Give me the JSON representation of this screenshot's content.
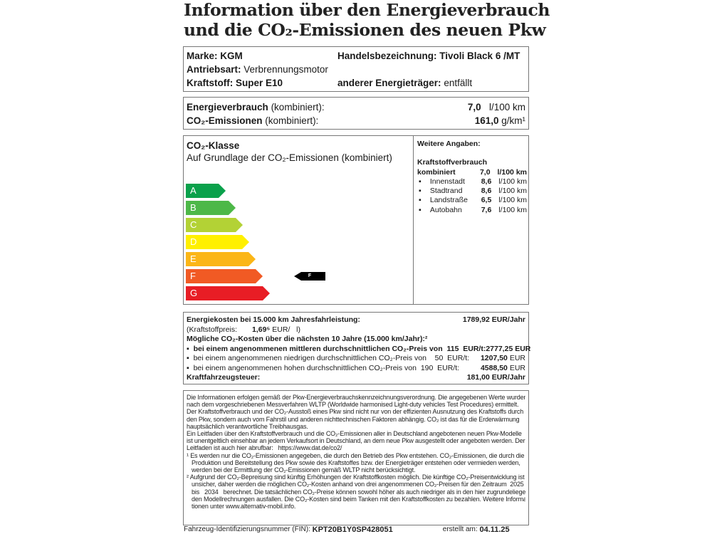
{
  "title": {
    "line1": "Information über den Energieverbrauch",
    "line2": "und die CO₂-Emissionen des neuen Pkw"
  },
  "vehicle": {
    "marke_label": "Marke:",
    "marke": "KGM",
    "handel_label": "Handelsbezeichnung:",
    "handel": "Tivoli Black 6 /MT",
    "antrieb_label": "Antriebsart:",
    "antrieb": "Verbrennungsmotor",
    "kraftstoff_label": "Kraftstoff:",
    "kraftstoff": "Super E10",
    "anderer_label": "anderer Energieträger:",
    "anderer": "entfällt"
  },
  "consumption": {
    "energie_label": "Energieverbrauch",
    "energie_suffix": "(kombiniert):",
    "energie_value": "7,0",
    "energie_unit": "l/100 km",
    "co2_label": "CO₂-Emissionen",
    "co2_suffix": "(kombiniert):",
    "co2_value": "161,0",
    "co2_unit": "g/km¹"
  },
  "co2class": {
    "title": "CO₂-Klasse",
    "subtitle": "Auf Grundlage der CO₂-Emissionen (kombiniert)",
    "classes": [
      {
        "label": "A",
        "color": "#0aa14b"
      },
      {
        "label": "B",
        "color": "#4db848"
      },
      {
        "label": "C",
        "color": "#b3d235"
      },
      {
        "label": "D",
        "color": "#fff000"
      },
      {
        "label": "E",
        "color": "#fbb617"
      },
      {
        "label": "F",
        "color": "#f15a24"
      },
      {
        "label": "G",
        "color": "#e81d25"
      }
    ],
    "selected": "F"
  },
  "weitere": {
    "title": "Weitere Angaben:",
    "heading": "Kraftstoffverbrauch",
    "kombiniert_label": "kombiniert",
    "kombiniert_value": "7,0",
    "kombiniert_unit": "l/100 km",
    "items": [
      {
        "name": "Innenstadt",
        "value": "8,6",
        "unit": "l/100 km"
      },
      {
        "name": "Stadtrand",
        "value": "8,6",
        "unit": "l/100 km"
      },
      {
        "name": "Landstraße",
        "value": "6,5",
        "unit": "l/100 km"
      },
      {
        "name": "Autobahn",
        "value": "7,6",
        "unit": "l/100 km"
      }
    ]
  },
  "costs": {
    "energie_label": "Energiekosten bei 15.000 km Jahresfahrleistung:",
    "energie_value": "1789,92 EUR/Jahr",
    "preis_label": "(Kraftstoffpreis:",
    "preis_value": "1,69⁵",
    "preis_unit": "EUR/   l)",
    "co2_heading": "Mögliche CO₂-Kosten über die nächsten 10 Jahre (15.000 km/Jahr):²",
    "mittel_label": "bei einem angenommenen mittleren durchschnittlichen CO₂-Preis von  115  EUR/t:",
    "mittel_value": "2777,25 EUR",
    "niedrig_label": "bei einem angenommenen niedrigen durchschnittlichen CO₂-Preis von    50  EUR/t:",
    "niedrig_value": "1207,50",
    "niedrig_unit": "EUR",
    "hoch_label": "bei einem angenommenen hohen durchschnittlichen CO₂-Preis von  190  EUR/t:",
    "hoch_value": "4588,50",
    "hoch_unit": "EUR",
    "steuer_label": "Kraftfahrzeugsteuer:",
    "steuer_value": "181,00 EUR/Jahr"
  },
  "info_lines": [
    "Die Informationen erfolgen gemäß der Pkw-Energieverbrauchskennzeichnungsverordnung. Die angegebenen Werte wurden",
    "nach dem vorgeschriebenen Messverfahren WLTP (Worldwide harmonised Light-duty vehicles Test Procedures) ermittelt.",
    "Der Kraftstoffverbrauch und der CO₂-Ausstoß eines Pkw sind nicht nur von der effizienten Ausnutzung des Kraftstoffs durch",
    "den Pkw, sondern auch vom Fahrstil und anderen nichttechnischen Faktoren abhängig. CO₂ ist das für die Erderwärmung",
    "hauptsächlich verantwortliche Treibhausgas.",
    "Ein Leitfaden über den Kraftstoffverbrauch und die CO₂-Emissionen aller in Deutschland angebotenen neuen Pkw-Modelle",
    "ist unentgeltlich einsehbar an jedem Verkaufsort in Deutschland, an dem neue Pkw ausgestellt oder angeboten werden. Der",
    "Leitfaden ist auch hier abrufbar:   https://www.dat.de/co2/",
    "¹ Es werden nur die CO₂-Emissionen angegeben, die durch den Betrieb des Pkw entstehen. CO₂-Emissionen, die durch die",
    "   Produktion und Bereitstellung des Pkw sowie des Kraftstoffes bzw. der Energieträger entstehen oder vermieden werden,",
    "   werden bei der Ermittlung der CO₂-Emissionen gemäß WLTP nicht berücksichtigt.",
    "² Aufgrund der CO₂-Bepreisung sind künftig Erhöhungen der Kraftstoffkosten möglich. Die künftige CO₂-Preisentwicklung ist",
    "   unsicher, daher werden die möglichen CO₂-Kosten anhand von drei angenommenen CO₂-Preisen für den Zeitraum  2025",
    "   bis   2034   berechnet. Die tatsächlichen CO₂-Preise können sowohl höher als auch niedriger als in den hier zugrundeliegen-",
    "   den Modellrechnungen ausfallen. Die CO₂-Kosten sind beim Tanken mit den Kraftstoffkosten zu bezahlen. Weitere Informa-",
    "   tionen unter www.alternativ-mobil.info."
  ],
  "footer": {
    "fin_label": "Fahrzeug-Identifizierungsnummer (FIN):",
    "fin": "KPT20B1Y0SP428051",
    "date_label": "erstellt am:",
    "date": "04.11.25"
  }
}
